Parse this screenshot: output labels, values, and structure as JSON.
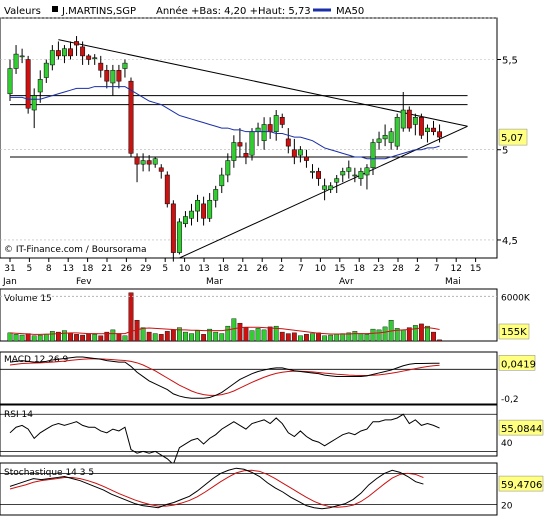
{
  "header": {
    "field_label": "Valeurs",
    "symbol": "J.MARTINS,SGP",
    "range_text": "Année +Bas: 4,20 +Haut: 5,73",
    "ma_legend": "MA50"
  },
  "watermark": "© IT-Finance.com / Boursorama",
  "colors": {
    "up": "#33cc33",
    "down": "#cc1111",
    "ma50": "#1a2fa8",
    "border": "#000000",
    "grid": "#b5b5b5",
    "panel_bg": "#ffffff",
    "highlight": "#ffff80",
    "macd_signal": "#cc1111",
    "osc_line": "#000000"
  },
  "chart_data": [
    {
      "type": "candlestick",
      "title": "J.MARTINS,SGP",
      "x_tick_labels": [
        "31",
        "5",
        "8",
        "13",
        "18",
        "21",
        "26",
        "29",
        "5",
        "10",
        "13",
        "18",
        "21",
        "26",
        "2",
        "7",
        "10",
        "15",
        "18",
        "23",
        "28",
        "2",
        "7",
        "12",
        "15"
      ],
      "month_labels": [
        "Jan",
        "Fev",
        "Mar",
        "Avr",
        "Mai"
      ],
      "y_ticks": [
        "5,5",
        "5",
        "4,5"
      ],
      "last_price": "5,07",
      "ylim": [
        4.4,
        5.73
      ],
      "ohlc": [
        [
          5.31,
          5.5,
          5.27,
          5.45
        ],
        [
          5.45,
          5.58,
          5.42,
          5.53
        ],
        [
          5.52,
          5.56,
          5.48,
          5.52
        ],
        [
          5.5,
          5.52,
          5.2,
          5.23
        ],
        [
          5.22,
          5.34,
          5.12,
          5.3
        ],
        [
          5.32,
          5.44,
          5.26,
          5.39
        ],
        [
          5.4,
          5.5,
          5.37,
          5.48
        ],
        [
          5.47,
          5.58,
          5.44,
          5.55
        ],
        [
          5.55,
          5.6,
          5.5,
          5.52
        ],
        [
          5.52,
          5.58,
          5.48,
          5.56
        ],
        [
          5.56,
          5.6,
          5.5,
          5.52
        ],
        [
          5.6,
          5.63,
          5.52,
          5.58
        ],
        [
          5.57,
          5.6,
          5.47,
          5.52
        ],
        [
          5.52,
          5.53,
          5.47,
          5.5
        ],
        [
          5.51,
          5.53,
          5.47,
          5.51
        ],
        [
          5.48,
          5.52,
          5.4,
          5.44
        ],
        [
          5.44,
          5.47,
          5.34,
          5.38
        ],
        [
          5.37,
          5.47,
          5.3,
          5.44
        ],
        [
          5.44,
          5.47,
          5.34,
          5.38
        ],
        [
          5.45,
          5.5,
          5.4,
          5.48
        ],
        [
          5.38,
          5.4,
          4.96,
          4.98
        ],
        [
          4.96,
          4.98,
          4.82,
          4.92
        ],
        [
          4.92,
          4.98,
          4.88,
          4.94
        ],
        [
          4.94,
          4.97,
          4.88,
          4.92
        ],
        [
          4.92,
          4.96,
          4.9,
          4.95
        ],
        [
          4.9,
          4.92,
          4.84,
          4.88
        ],
        [
          4.86,
          4.88,
          4.68,
          4.7
        ],
        [
          4.7,
          4.72,
          4.38,
          4.43
        ],
        [
          4.43,
          4.62,
          4.42,
          4.6
        ],
        [
          4.59,
          4.66,
          4.57,
          4.63
        ],
        [
          4.62,
          4.7,
          4.58,
          4.66
        ],
        [
          4.66,
          4.75,
          4.6,
          4.72
        ],
        [
          4.7,
          4.74,
          4.58,
          4.62
        ],
        [
          4.62,
          4.76,
          4.6,
          4.72
        ],
        [
          4.72,
          4.8,
          4.68,
          4.78
        ],
        [
          4.8,
          4.9,
          4.76,
          4.86
        ],
        [
          4.86,
          4.98,
          4.82,
          4.94
        ],
        [
          4.94,
          5.08,
          4.9,
          5.04
        ],
        [
          5.04,
          5.12,
          4.96,
          5.02
        ],
        [
          4.98,
          5.04,
          4.92,
          4.96
        ],
        [
          4.97,
          5.12,
          4.94,
          5.1
        ],
        [
          5.1,
          5.15,
          5.02,
          5.12
        ],
        [
          5.05,
          5.18,
          5.0,
          5.14
        ],
        [
          5.14,
          5.18,
          5.06,
          5.1
        ],
        [
          5.1,
          5.22,
          5.05,
          5.19
        ],
        [
          5.18,
          5.2,
          5.12,
          5.14
        ],
        [
          5.06,
          5.12,
          4.98,
          5.02
        ],
        [
          5.0,
          5.06,
          4.92,
          4.96
        ],
        [
          4.97,
          5.02,
          4.93,
          5.0
        ],
        [
          4.96,
          5.0,
          4.9,
          4.94
        ],
        [
          4.88,
          4.92,
          4.84,
          4.88
        ],
        [
          4.88,
          4.9,
          4.8,
          4.84
        ],
        [
          4.78,
          4.84,
          4.72,
          4.8
        ],
        [
          4.78,
          4.82,
          4.76,
          4.8
        ],
        [
          4.82,
          4.86,
          4.76,
          4.84
        ],
        [
          4.86,
          4.9,
          4.82,
          4.88
        ],
        [
          4.88,
          4.94,
          4.84,
          4.9
        ],
        [
          4.86,
          4.9,
          4.82,
          4.86
        ],
        [
          4.84,
          4.9,
          4.8,
          4.88
        ],
        [
          4.86,
          4.92,
          4.78,
          4.9
        ],
        [
          4.9,
          5.06,
          4.86,
          5.04
        ],
        [
          5.04,
          5.1,
          5.0,
          5.06
        ],
        [
          5.06,
          5.14,
          5.02,
          5.08
        ],
        [
          5.04,
          5.12,
          5.0,
          5.1
        ],
        [
          5.02,
          5.2,
          5.0,
          5.18
        ],
        [
          5.12,
          5.32,
          5.1,
          5.22
        ],
        [
          5.22,
          5.24,
          5.1,
          5.12
        ],
        [
          5.14,
          5.2,
          5.08,
          5.18
        ],
        [
          5.18,
          5.2,
          5.06,
          5.08
        ],
        [
          5.1,
          5.14,
          5.04,
          5.12
        ],
        [
          5.12,
          5.16,
          5.08,
          5.1
        ],
        [
          5.1,
          5.14,
          5.04,
          5.07
        ]
      ],
      "ma50": [
        5.29,
        5.29,
        5.29,
        5.28,
        5.28,
        5.28,
        5.29,
        5.3,
        5.31,
        5.32,
        5.33,
        5.34,
        5.34,
        5.34,
        5.35,
        5.35,
        5.35,
        5.35,
        5.35,
        5.35,
        5.33,
        5.31,
        5.29,
        5.27,
        5.26,
        5.25,
        5.23,
        5.21,
        5.19,
        5.18,
        5.17,
        5.16,
        5.15,
        5.14,
        5.13,
        5.12,
        5.12,
        5.11,
        5.11,
        5.1,
        5.1,
        5.1,
        5.1,
        5.1,
        5.09,
        5.09,
        5.08,
        5.07,
        5.07,
        5.06,
        5.05,
        5.03,
        5.01,
        5.0,
        4.99,
        4.98,
        4.97,
        4.96,
        4.96,
        4.95,
        4.95,
        4.95,
        4.95,
        4.96,
        4.97,
        4.98,
        4.99,
        5.0,
        5.0,
        5.01,
        5.01,
        5.02
      ],
      "trendlines": [
        {
          "from": [
            8,
            5.61
          ],
          "to": [
            71,
            5.13
          ]
        },
        {
          "from": [
            28,
            4.4
          ],
          "to": [
            71,
            5.13
          ]
        },
        {
          "from": [
            0,
            5.3
          ],
          "to": [
            71,
            5.3
          ]
        },
        {
          "from": [
            0,
            5.25
          ],
          "to": [
            71,
            5.25
          ]
        },
        {
          "from": [
            0,
            4.96
          ],
          "to": [
            71,
            4.96
          ]
        }
      ]
    },
    {
      "type": "bar",
      "title": "Volume 15",
      "y_ticks": [
        "6000K"
      ],
      "last_value": "155K",
      "ylim": [
        0,
        7000
      ],
      "values": [
        1100,
        900,
        800,
        1000,
        700,
        800,
        900,
        1300,
        1200,
        1400,
        1100,
        900,
        800,
        1000,
        900,
        700,
        1200,
        1500,
        1000,
        700,
        6500,
        2800,
        1800,
        1200,
        1000,
        900,
        1300,
        1500,
        1800,
        1200,
        1000,
        1400,
        900,
        1600,
        1200,
        1000,
        2000,
        3000,
        2400,
        1800,
        1400,
        1700,
        1500,
        1900,
        2000,
        1200,
        1000,
        1100,
        700,
        900,
        1000,
        1100,
        700,
        800,
        900,
        1000,
        1100,
        1300,
        1000,
        900,
        1600,
        1500,
        1900,
        2800,
        1700,
        1500,
        1800,
        2100,
        2300,
        2000,
        1200,
        155
      ],
      "ma": [
        1100,
        1050,
        1000,
        950,
        900,
        900,
        920,
        950,
        1000,
        1050,
        1100,
        1100,
        1050,
        1000,
        1000,
        980,
        1000,
        1000,
        1000,
        1000,
        1300,
        1500,
        1700,
        1750,
        1700,
        1650,
        1600,
        1550,
        1500,
        1500,
        1450,
        1450,
        1400,
        1400,
        1400,
        1400,
        1500,
        1650,
        1800,
        1850,
        1850,
        1850,
        1800,
        1750,
        1700,
        1650,
        1550,
        1450,
        1350,
        1250,
        1150,
        1050,
        1000,
        950,
        950,
        950,
        950,
        1000,
        1000,
        1000,
        1050,
        1100,
        1200,
        1350,
        1450,
        1500,
        1550,
        1650,
        1750,
        1800,
        1700,
        1550
      ]
    },
    {
      "type": "line",
      "title": "MACD 12 26 9",
      "y_ticks": [
        "-0,2"
      ],
      "last_value": "0,0419",
      "ylim": [
        -0.24,
        0.12
      ],
      "macd": [
        0.05,
        0.055,
        0.06,
        0.055,
        0.05,
        0.05,
        0.055,
        0.065,
        0.07,
        0.075,
        0.08,
        0.085,
        0.085,
        0.08,
        0.075,
        0.07,
        0.06,
        0.055,
        0.05,
        0.05,
        0.02,
        -0.02,
        -0.05,
        -0.08,
        -0.1,
        -0.12,
        -0.14,
        -0.17,
        -0.185,
        -0.195,
        -0.2,
        -0.2,
        -0.2,
        -0.195,
        -0.18,
        -0.16,
        -0.13,
        -0.1,
        -0.07,
        -0.05,
        -0.03,
        -0.015,
        -0.005,
        0.005,
        0.01,
        0.01,
        0.0,
        -0.01,
        -0.015,
        -0.02,
        -0.025,
        -0.03,
        -0.04,
        -0.045,
        -0.05,
        -0.05,
        -0.05,
        -0.05,
        -0.05,
        -0.045,
        -0.035,
        -0.025,
        -0.015,
        -0.005,
        0.01,
        0.025,
        0.035,
        0.04,
        0.04,
        0.041,
        0.042,
        0.0419
      ],
      "signal": [
        0.03,
        0.035,
        0.04,
        0.042,
        0.044,
        0.045,
        0.047,
        0.05,
        0.053,
        0.057,
        0.062,
        0.066,
        0.07,
        0.072,
        0.073,
        0.072,
        0.07,
        0.067,
        0.064,
        0.061,
        0.055,
        0.045,
        0.03,
        0.01,
        -0.01,
        -0.035,
        -0.06,
        -0.085,
        -0.11,
        -0.13,
        -0.15,
        -0.165,
        -0.175,
        -0.18,
        -0.18,
        -0.175,
        -0.165,
        -0.15,
        -0.13,
        -0.11,
        -0.09,
        -0.072,
        -0.055,
        -0.04,
        -0.028,
        -0.02,
        -0.015,
        -0.012,
        -0.013,
        -0.015,
        -0.018,
        -0.022,
        -0.026,
        -0.03,
        -0.034,
        -0.037,
        -0.04,
        -0.042,
        -0.043,
        -0.043,
        -0.041,
        -0.038,
        -0.033,
        -0.027,
        -0.02,
        -0.012,
        -0.004,
        0.005,
        0.013,
        0.02,
        0.025,
        0.028
      ],
      "zero_line": 0
    },
    {
      "type": "line",
      "title": "RSI 14",
      "y_ticks": [
        "40"
      ],
      "last_value": "55,0844",
      "ylim": [
        25,
        80
      ],
      "values": [
        50,
        56,
        58,
        54,
        44,
        50,
        54,
        58,
        60,
        58,
        60,
        62,
        58,
        56,
        56,
        52,
        50,
        54,
        52,
        56,
        32,
        28,
        30,
        28,
        30,
        26,
        22,
        16,
        34,
        38,
        42,
        44,
        38,
        44,
        48,
        54,
        58,
        62,
        58,
        54,
        60,
        62,
        64,
        60,
        66,
        60,
        50,
        46,
        52,
        46,
        42,
        40,
        36,
        40,
        44,
        48,
        50,
        48,
        52,
        54,
        62,
        62,
        64,
        64,
        66,
        70,
        60,
        64,
        58,
        60,
        58,
        55.0844
      ],
      "levels": [
        30,
        70
      ]
    },
    {
      "type": "line",
      "title": "Stochastique 14 3 5",
      "y_ticks": [
        "20"
      ],
      "last_value": "59,4706",
      "ylim": [
        0,
        100
      ],
      "k": [
        55,
        60,
        65,
        70,
        68,
        70,
        72,
        74,
        70,
        66,
        60,
        54,
        48,
        40,
        34,
        28,
        22,
        18,
        16,
        14,
        20,
        24,
        30,
        36,
        46,
        58,
        70,
        80,
        86,
        90,
        88,
        82,
        74,
        62,
        52,
        44,
        34,
        26,
        18,
        14,
        12,
        14,
        18,
        22,
        30,
        42,
        58,
        70,
        80,
        86,
        82,
        74,
        64,
        59.47
      ],
      "d": [
        50,
        54,
        58,
        63,
        66,
        68,
        70,
        72,
        72,
        70,
        66,
        61,
        55,
        48,
        41,
        35,
        29,
        24,
        20,
        17,
        17,
        19,
        23,
        28,
        35,
        44,
        54,
        64,
        73,
        81,
        85,
        86,
        84,
        78,
        70,
        61,
        52,
        43,
        34,
        26,
        20,
        16,
        15,
        16,
        19,
        26,
        36,
        48,
        60,
        71,
        78,
        80,
        78,
        72
      ],
      "levels": [
        20,
        80
      ]
    }
  ]
}
